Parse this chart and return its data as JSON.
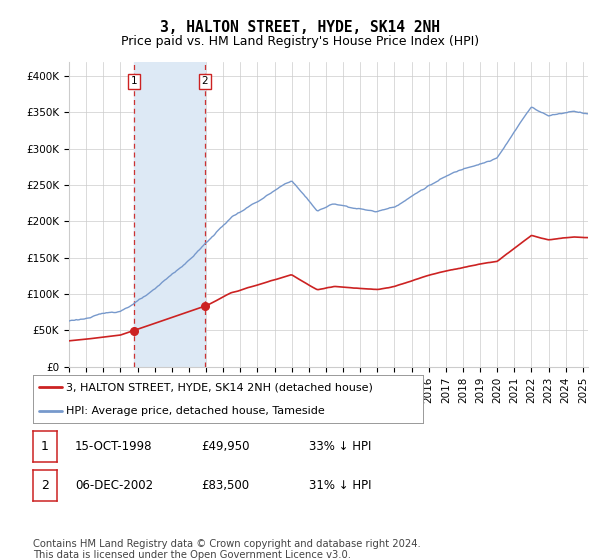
{
  "title": "3, HALTON STREET, HYDE, SK14 2NH",
  "subtitle": "Price paid vs. HM Land Registry's House Price Index (HPI)",
  "ylim": [
    0,
    420000
  ],
  "xlim_start": 1995.0,
  "xlim_end": 2025.3,
  "yticks": [
    0,
    50000,
    100000,
    150000,
    200000,
    250000,
    300000,
    350000,
    400000
  ],
  "ytick_labels": [
    "£0",
    "£50K",
    "£100K",
    "£150K",
    "£200K",
    "£250K",
    "£300K",
    "£350K",
    "£400K"
  ],
  "sale1_x": 1998.79,
  "sale1_y": 49950,
  "sale2_x": 2002.93,
  "sale2_y": 83500,
  "shade_color": "#dde9f5",
  "dashed_color": "#cc3333",
  "property_line_color": "#cc2222",
  "hpi_line_color": "#7799cc",
  "legend_entry1": "3, HALTON STREET, HYDE, SK14 2NH (detached house)",
  "legend_entry2": "HPI: Average price, detached house, Tameside",
  "table_row1": [
    "1",
    "15-OCT-1998",
    "£49,950",
    "33% ↓ HPI"
  ],
  "table_row2": [
    "2",
    "06-DEC-2002",
    "£83,500",
    "31% ↓ HPI"
  ],
  "footnote": "Contains HM Land Registry data © Crown copyright and database right 2024.\nThis data is licensed under the Open Government Licence v3.0.",
  "bg_color": "#ffffff",
  "grid_color": "#cccccc",
  "title_fontsize": 10.5,
  "subtitle_fontsize": 9,
  "tick_fontsize": 7.5
}
